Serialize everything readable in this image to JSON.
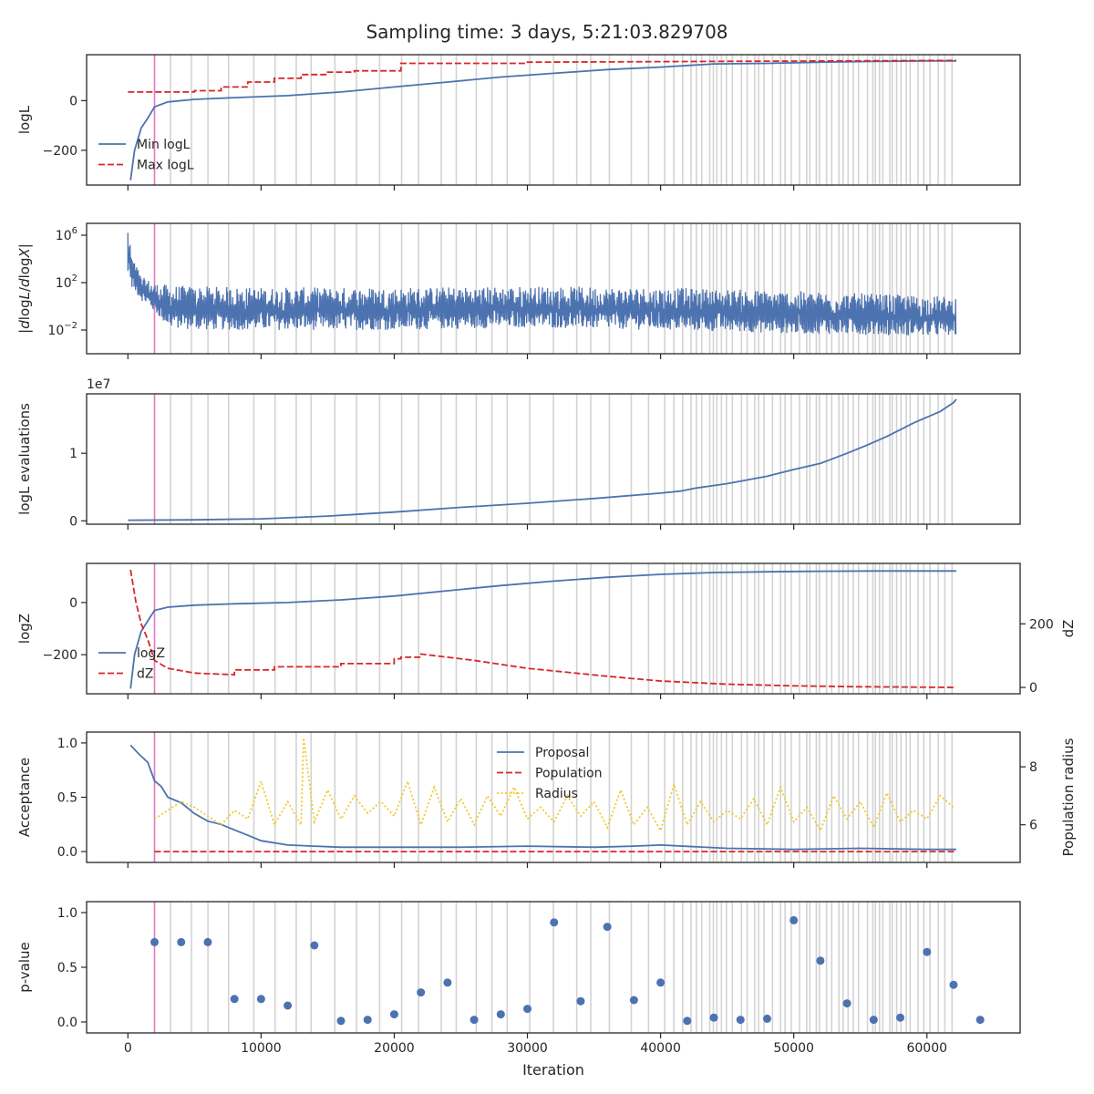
{
  "figure": {
    "title": "Sampling time: 3 days, 5:21:03.829708",
    "xlabel": "Iteration",
    "xlim": [
      -3100,
      67000
    ],
    "xticks": [
      0,
      10000,
      20000,
      30000,
      40000,
      50000,
      60000
    ],
    "xtick_labels": [
      "0",
      "10000",
      "20000",
      "30000",
      "40000",
      "50000",
      "60000"
    ],
    "highlight_line_x": 2000,
    "colors": {
      "blue": "#4c72b0",
      "red": "#d62728",
      "yellow": "#f0c929",
      "pink": "#e377c2",
      "gray": "#d3d3d3",
      "axis": "#262626"
    }
  },
  "chart_data": [
    {
      "type": "line",
      "ylabel": "logL",
      "ylim": [
        -340,
        185
      ],
      "yticks": [
        0,
        -200
      ],
      "ytick_labels": [
        "0",
        "−200"
      ],
      "legend": "lower-left",
      "series": [
        {
          "name": "Min logL",
          "color": "#4c72b0",
          "dash": "solid",
          "x": [
            200,
            500,
            1000,
            1500,
            2000,
            3000,
            5000,
            8000,
            12000,
            16000,
            20000,
            24000,
            28000,
            32000,
            36000,
            40000,
            44000,
            48000,
            52000,
            56000,
            60000,
            62200
          ],
          "y": [
            -320,
            -200,
            -110,
            -70,
            -25,
            -5,
            5,
            12,
            20,
            35,
            55,
            75,
            95,
            110,
            125,
            135,
            148,
            150,
            155,
            158,
            160,
            160
          ]
        },
        {
          "name": "Max logL",
          "color": "#d62728",
          "dash": "dashed",
          "x": [
            0,
            5000,
            5000,
            7000,
            7000,
            9000,
            9000,
            11000,
            11000,
            13000,
            13000,
            15000,
            15000,
            17000,
            17000,
            20500,
            20500,
            30000,
            30000,
            62200
          ],
          "y": [
            35,
            35,
            40,
            40,
            55,
            55,
            75,
            75,
            90,
            90,
            105,
            105,
            115,
            115,
            120,
            120,
            150,
            150,
            155,
            162
          ]
        }
      ]
    },
    {
      "type": "line",
      "ylabel": "|dlogL/dlogX|",
      "scale": "log",
      "ylim_log10": [
        -4,
        7
      ],
      "yticks_log10": [
        6,
        2,
        -2
      ],
      "ytick_labels": [
        "10",
        "10",
        "10"
      ],
      "ytick_exponents": [
        "6",
        "2",
        "−2"
      ],
      "series": [
        {
          "name": "",
          "color": "#4c72b0",
          "band": true,
          "x": [
            0,
            300,
            1000,
            2000,
            3000,
            5000,
            10000,
            20000,
            30000,
            40000,
            50000,
            60000,
            62200
          ],
          "upper_log10": [
            6.2,
            4.5,
            2.5,
            2.0,
            1.8,
            1.7,
            1.6,
            1.6,
            1.7,
            1.6,
            1.3,
            0.9,
            0.8
          ],
          "lower_log10": [
            3.0,
            1.5,
            0.5,
            -0.5,
            -1.8,
            -2.0,
            -2.0,
            -2.0,
            -1.8,
            -2.0,
            -2.3,
            -2.5,
            -2.5
          ]
        }
      ]
    },
    {
      "type": "line",
      "ylabel": "logL evaluations",
      "offset_label": "1e7",
      "ylim": [
        -0.05,
        1.88
      ],
      "yticks": [
        1,
        0
      ],
      "ytick_labels": [
        "1",
        "0"
      ],
      "series": [
        {
          "name": "",
          "color": "#4c72b0",
          "dash": "solid",
          "x": [
            0,
            5000,
            10000,
            15000,
            20000,
            25000,
            30000,
            35000,
            40000,
            41500,
            42500,
            45000,
            48000,
            50000,
            52000,
            54000,
            55500,
            57000,
            59000,
            61000,
            62000,
            62200
          ],
          "y": [
            0.01,
            0.015,
            0.03,
            0.07,
            0.13,
            0.2,
            0.26,
            0.33,
            0.41,
            0.44,
            0.48,
            0.55,
            0.66,
            0.76,
            0.85,
            1.0,
            1.12,
            1.25,
            1.45,
            1.62,
            1.75,
            1.8
          ]
        }
      ]
    },
    {
      "type": "line",
      "ylabel": "logZ",
      "ylim": [
        -350,
        150
      ],
      "yticks": [
        0,
        -200
      ],
      "ytick_labels": [
        "0",
        "−200"
      ],
      "ylabel_right": "dZ",
      "ylim_right": [
        -20,
        390
      ],
      "yticks_right": [
        200,
        0
      ],
      "ytick_labels_right": [
        "200",
        "0"
      ],
      "legend": "lower-left",
      "series": [
        {
          "name": "logZ",
          "color": "#4c72b0",
          "dash": "solid",
          "axis": "left",
          "x": [
            200,
            500,
            1000,
            1500,
            2000,
            3000,
            5000,
            8000,
            12000,
            16000,
            20000,
            24000,
            28000,
            32000,
            36000,
            40000,
            44000,
            48000,
            52000,
            56000,
            60000,
            62200
          ],
          "y": [
            -330,
            -200,
            -110,
            -70,
            -30,
            -18,
            -10,
            -5,
            0,
            10,
            25,
            45,
            65,
            82,
            97,
            108,
            115,
            118,
            120,
            121,
            121,
            121
          ]
        },
        {
          "name": "dZ",
          "color": "#d62728",
          "dash": "dashed",
          "axis": "right",
          "x": [
            200,
            600,
            1000,
            1500,
            2000,
            3000,
            5000,
            8000,
            8000,
            11000,
            11000,
            16000,
            16000,
            20000,
            20000,
            20500,
            20500,
            22000,
            22000,
            26000,
            30000,
            36000,
            40000,
            45000,
            50000,
            55000,
            62200
          ],
          "y": [
            370,
            270,
            200,
            150,
            85,
            60,
            45,
            40,
            55,
            55,
            65,
            65,
            75,
            75,
            90,
            90,
            95,
            95,
            105,
            85,
            60,
            35,
            20,
            10,
            5,
            2,
            0
          ]
        }
      ]
    },
    {
      "type": "line",
      "ylabel": "Acceptance",
      "ylim": [
        -0.1,
        1.1
      ],
      "yticks": [
        1.0,
        0.5,
        0.0
      ],
      "ytick_labels": [
        "1.0",
        "0.5",
        "0.0"
      ],
      "ylabel_right": "Population radius",
      "ylim_right": [
        4.7,
        9.2
      ],
      "yticks_right": [
        8,
        6
      ],
      "ytick_labels_right": [
        "8",
        "6"
      ],
      "legend": "top-center",
      "series": [
        {
          "name": "Proposal",
          "color": "#4c72b0",
          "dash": "solid",
          "axis": "left",
          "x": [
            200,
            800,
            1500,
            2000,
            2500,
            3000,
            4000,
            5000,
            6000,
            7000,
            8000,
            9000,
            10000,
            12000,
            14000,
            16000,
            20000,
            25000,
            30000,
            35000,
            38000,
            40000,
            45000,
            50000,
            55000,
            60000,
            62200
          ],
          "y": [
            0.98,
            0.9,
            0.82,
            0.65,
            0.6,
            0.5,
            0.45,
            0.35,
            0.28,
            0.25,
            0.2,
            0.15,
            0.1,
            0.06,
            0.05,
            0.04,
            0.04,
            0.04,
            0.05,
            0.04,
            0.05,
            0.06,
            0.03,
            0.02,
            0.03,
            0.02,
            0.02
          ]
        },
        {
          "name": "Population",
          "color": "#d62728",
          "dash": "dashed",
          "axis": "left",
          "x": [
            2000,
            62200
          ],
          "y": [
            0.0,
            0.0
          ]
        },
        {
          "name": "Radius",
          "color": "#f0c929",
          "dash": "dotted",
          "axis": "right",
          "x": [
            2000,
            3000,
            4000,
            5000,
            6000,
            7000,
            8000,
            9000,
            10000,
            11000,
            12000,
            13000,
            13200,
            14000,
            15000,
            16000,
            17000,
            18000,
            19000,
            20000,
            21000,
            22000,
            23000,
            24000,
            25000,
            26000,
            27000,
            28000,
            29000,
            30000,
            31000,
            32000,
            33000,
            34000,
            35000,
            36000,
            37000,
            38000,
            39000,
            40000,
            41000,
            42000,
            43000,
            44000,
            45000,
            46000,
            47000,
            48000,
            49000,
            50000,
            51000,
            52000,
            53000,
            54000,
            55000,
            56000,
            57000,
            58000,
            59000,
            60000,
            61000,
            62000
          ],
          "y": [
            6.2,
            6.5,
            6.8,
            6.6,
            6.3,
            6.0,
            6.5,
            6.2,
            7.5,
            6.0,
            6.8,
            6.0,
            9.0,
            6.1,
            7.2,
            6.2,
            7.0,
            6.4,
            6.8,
            6.3,
            7.5,
            6.0,
            7.3,
            6.1,
            6.9,
            6.0,
            7.0,
            6.3,
            7.3,
            6.2,
            6.6,
            6.1,
            7.0,
            6.3,
            6.8,
            5.9,
            7.2,
            6.0,
            6.6,
            5.8,
            7.4,
            6.0,
            6.8,
            6.1,
            6.5,
            6.2,
            6.9,
            6.0,
            7.3,
            6.1,
            6.6,
            5.8,
            7.0,
            6.2,
            6.8,
            5.9,
            7.1,
            6.1,
            6.5,
            6.2,
            7.0,
            6.6
          ]
        }
      ]
    },
    {
      "type": "scatter",
      "ylabel": "p-value",
      "ylim": [
        -0.1,
        1.1
      ],
      "yticks": [
        1.0,
        0.5,
        0.0
      ],
      "ytick_labels": [
        "1.0",
        "0.5",
        "0.0"
      ],
      "series": [
        {
          "name": "",
          "color": "#4c72b0",
          "x": [
            2000,
            4000,
            6000,
            8000,
            10000,
            12000,
            14000,
            16000,
            18000,
            20000,
            22000,
            24000,
            26000,
            28000,
            30000,
            32000,
            34000,
            36000,
            38000,
            40000,
            42000,
            44000,
            46000,
            48000,
            50000,
            52000,
            54000,
            56000,
            58000,
            60000,
            62000,
            64000
          ],
          "y": [
            0.73,
            0.73,
            0.73,
            0.21,
            0.21,
            0.15,
            0.7,
            0.01,
            0.02,
            0.07,
            0.27,
            0.36,
            0.02,
            0.07,
            0.12,
            0.91,
            0.19,
            0.87,
            0.2,
            0.36,
            0.01,
            0.04,
            0.02,
            0.03,
            0.93,
            0.56,
            0.17,
            0.02,
            0.04,
            0.64,
            0.34,
            0.02
          ]
        }
      ]
    }
  ]
}
